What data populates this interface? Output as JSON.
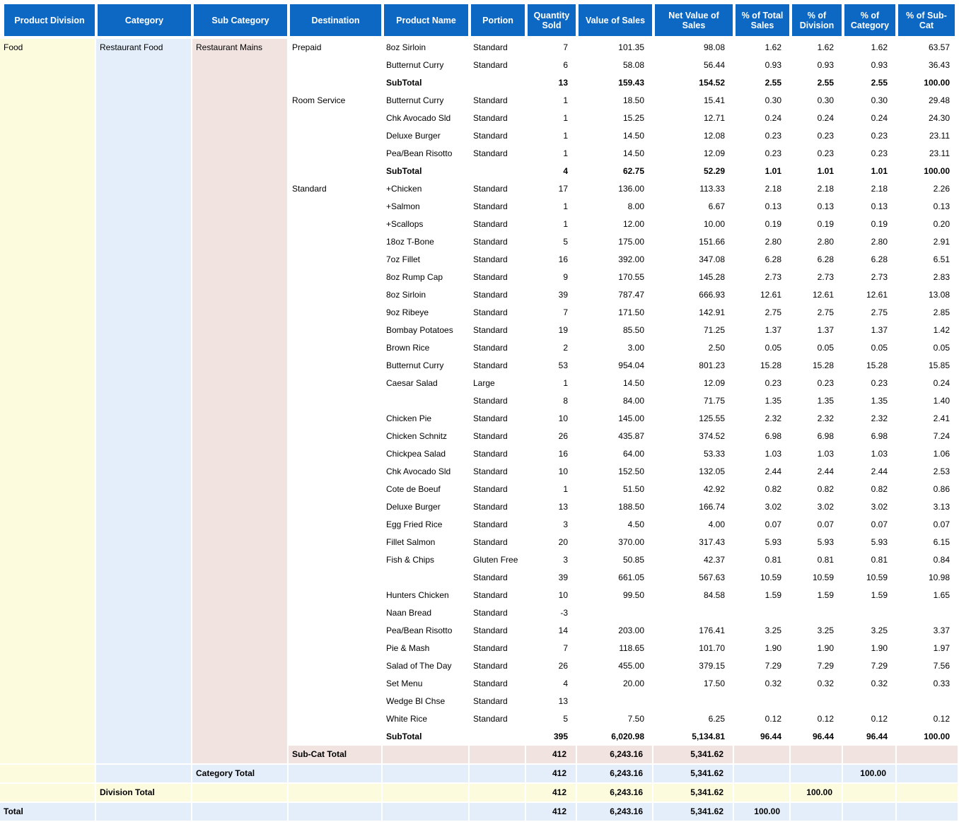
{
  "colors": {
    "header_bg": "#0D68C3",
    "header_text": "#FFFFFF",
    "band_yellow": "#FDFBDE",
    "band_blue": "#E4EEFA",
    "band_pink": "#F0E3E0",
    "text": "#000000"
  },
  "table": {
    "columns": [
      {
        "key": "product_division",
        "label": "Product Division",
        "align": "left"
      },
      {
        "key": "category",
        "label": "Category",
        "align": "left"
      },
      {
        "key": "sub_category",
        "label": "Sub Category",
        "align": "left"
      },
      {
        "key": "destination",
        "label": "Destination",
        "align": "left"
      },
      {
        "key": "product_name",
        "label": "Product Name",
        "align": "left"
      },
      {
        "key": "portion",
        "label": "Portion",
        "align": "left"
      },
      {
        "key": "quantity_sold",
        "label": "Quantity Sold",
        "align": "right"
      },
      {
        "key": "value_of_sales",
        "label": "Value of Sales",
        "align": "right"
      },
      {
        "key": "net_value_of_sales",
        "label": "Net Value of Sales",
        "align": "right"
      },
      {
        "key": "pct_of_total_sales",
        "label": "% of Total Sales",
        "align": "right"
      },
      {
        "key": "pct_of_division",
        "label": "% of Division",
        "align": "right"
      },
      {
        "key": "pct_of_category",
        "label": "% of Category",
        "align": "right"
      },
      {
        "key": "pct_of_sub_cat",
        "label": "% of Sub-Cat",
        "align": "right"
      }
    ],
    "rows": [
      {
        "type": "data",
        "cells": [
          "Food",
          "Restaurant Food",
          "Restaurant Mains",
          "Prepaid",
          "8oz Sirloin",
          "Standard",
          "7",
          "101.35",
          "98.08",
          "1.62",
          "1.62",
          "1.62",
          "63.57"
        ]
      },
      {
        "type": "data",
        "cells": [
          "",
          "",
          "",
          "",
          "Butternut Curry",
          "Standard",
          "6",
          "58.08",
          "56.44",
          "0.93",
          "0.93",
          "0.93",
          "36.43"
        ]
      },
      {
        "type": "subtotal",
        "cells": [
          "",
          "",
          "",
          "",
          "SubTotal",
          "",
          "13",
          "159.43",
          "154.52",
          "2.55",
          "2.55",
          "2.55",
          "100.00"
        ]
      },
      {
        "type": "data",
        "cells": [
          "",
          "",
          "",
          "Room Service",
          "Butternut Curry",
          "Standard",
          "1",
          "18.50",
          "15.41",
          "0.30",
          "0.30",
          "0.30",
          "29.48"
        ]
      },
      {
        "type": "data",
        "cells": [
          "",
          "",
          "",
          "",
          "Chk Avocado Sld",
          "Standard",
          "1",
          "15.25",
          "12.71",
          "0.24",
          "0.24",
          "0.24",
          "24.30"
        ]
      },
      {
        "type": "data",
        "cells": [
          "",
          "",
          "",
          "",
          "Deluxe Burger",
          "Standard",
          "1",
          "14.50",
          "12.08",
          "0.23",
          "0.23",
          "0.23",
          "23.11"
        ]
      },
      {
        "type": "data",
        "cells": [
          "",
          "",
          "",
          "",
          "Pea/Bean Risotto",
          "Standard",
          "1",
          "14.50",
          "12.09",
          "0.23",
          "0.23",
          "0.23",
          "23.11"
        ]
      },
      {
        "type": "subtotal",
        "cells": [
          "",
          "",
          "",
          "",
          "SubTotal",
          "",
          "4",
          "62.75",
          "52.29",
          "1.01",
          "1.01",
          "1.01",
          "100.00"
        ]
      },
      {
        "type": "data",
        "cells": [
          "",
          "",
          "",
          "Standard",
          "+Chicken",
          "Standard",
          "17",
          "136.00",
          "113.33",
          "2.18",
          "2.18",
          "2.18",
          "2.26"
        ]
      },
      {
        "type": "data",
        "cells": [
          "",
          "",
          "",
          "",
          "+Salmon",
          "Standard",
          "1",
          "8.00",
          "6.67",
          "0.13",
          "0.13",
          "0.13",
          "0.13"
        ]
      },
      {
        "type": "data",
        "cells": [
          "",
          "",
          "",
          "",
          "+Scallops",
          "Standard",
          "1",
          "12.00",
          "10.00",
          "0.19",
          "0.19",
          "0.19",
          "0.20"
        ]
      },
      {
        "type": "data",
        "cells": [
          "",
          "",
          "",
          "",
          "18oz T-Bone",
          "Standard",
          "5",
          "175.00",
          "151.66",
          "2.80",
          "2.80",
          "2.80",
          "2.91"
        ]
      },
      {
        "type": "data",
        "cells": [
          "",
          "",
          "",
          "",
          "7oz Fillet",
          "Standard",
          "16",
          "392.00",
          "347.08",
          "6.28",
          "6.28",
          "6.28",
          "6.51"
        ]
      },
      {
        "type": "data",
        "cells": [
          "",
          "",
          "",
          "",
          "8oz Rump Cap",
          "Standard",
          "9",
          "170.55",
          "145.28",
          "2.73",
          "2.73",
          "2.73",
          "2.83"
        ]
      },
      {
        "type": "data",
        "cells": [
          "",
          "",
          "",
          "",
          "8oz Sirloin",
          "Standard",
          "39",
          "787.47",
          "666.93",
          "12.61",
          "12.61",
          "12.61",
          "13.08"
        ]
      },
      {
        "type": "data",
        "cells": [
          "",
          "",
          "",
          "",
          "9oz Ribeye",
          "Standard",
          "7",
          "171.50",
          "142.91",
          "2.75",
          "2.75",
          "2.75",
          "2.85"
        ]
      },
      {
        "type": "data",
        "cells": [
          "",
          "",
          "",
          "",
          "Bombay Potatoes",
          "Standard",
          "19",
          "85.50",
          "71.25",
          "1.37",
          "1.37",
          "1.37",
          "1.42"
        ]
      },
      {
        "type": "data",
        "cells": [
          "",
          "",
          "",
          "",
          "Brown Rice",
          "Standard",
          "2",
          "3.00",
          "2.50",
          "0.05",
          "0.05",
          "0.05",
          "0.05"
        ]
      },
      {
        "type": "data",
        "cells": [
          "",
          "",
          "",
          "",
          "Butternut Curry",
          "Standard",
          "53",
          "954.04",
          "801.23",
          "15.28",
          "15.28",
          "15.28",
          "15.85"
        ]
      },
      {
        "type": "data",
        "cells": [
          "",
          "",
          "",
          "",
          "Caesar Salad",
          "Large",
          "1",
          "14.50",
          "12.09",
          "0.23",
          "0.23",
          "0.23",
          "0.24"
        ]
      },
      {
        "type": "data",
        "cells": [
          "",
          "",
          "",
          "",
          "",
          "Standard",
          "8",
          "84.00",
          "71.75",
          "1.35",
          "1.35",
          "1.35",
          "1.40"
        ]
      },
      {
        "type": "data",
        "cells": [
          "",
          "",
          "",
          "",
          "Chicken Pie",
          "Standard",
          "10",
          "145.00",
          "125.55",
          "2.32",
          "2.32",
          "2.32",
          "2.41"
        ]
      },
      {
        "type": "data",
        "cells": [
          "",
          "",
          "",
          "",
          "Chicken Schnitz",
          "Standard",
          "26",
          "435.87",
          "374.52",
          "6.98",
          "6.98",
          "6.98",
          "7.24"
        ]
      },
      {
        "type": "data",
        "cells": [
          "",
          "",
          "",
          "",
          "Chickpea Salad",
          "Standard",
          "16",
          "64.00",
          "53.33",
          "1.03",
          "1.03",
          "1.03",
          "1.06"
        ]
      },
      {
        "type": "data",
        "cells": [
          "",
          "",
          "",
          "",
          "Chk Avocado Sld",
          "Standard",
          "10",
          "152.50",
          "132.05",
          "2.44",
          "2.44",
          "2.44",
          "2.53"
        ]
      },
      {
        "type": "data",
        "cells": [
          "",
          "",
          "",
          "",
          "Cote de Boeuf",
          "Standard",
          "1",
          "51.50",
          "42.92",
          "0.82",
          "0.82",
          "0.82",
          "0.86"
        ]
      },
      {
        "type": "data",
        "cells": [
          "",
          "",
          "",
          "",
          "Deluxe Burger",
          "Standard",
          "13",
          "188.50",
          "166.74",
          "3.02",
          "3.02",
          "3.02",
          "3.13"
        ]
      },
      {
        "type": "data",
        "cells": [
          "",
          "",
          "",
          "",
          "Egg Fried Rice",
          "Standard",
          "3",
          "4.50",
          "4.00",
          "0.07",
          "0.07",
          "0.07",
          "0.07"
        ]
      },
      {
        "type": "data",
        "cells": [
          "",
          "",
          "",
          "",
          "Fillet Salmon",
          "Standard",
          "20",
          "370.00",
          "317.43",
          "5.93",
          "5.93",
          "5.93",
          "6.15"
        ]
      },
      {
        "type": "data",
        "cells": [
          "",
          "",
          "",
          "",
          "Fish & Chips",
          "Gluten Free",
          "3",
          "50.85",
          "42.37",
          "0.81",
          "0.81",
          "0.81",
          "0.84"
        ]
      },
      {
        "type": "data",
        "cells": [
          "",
          "",
          "",
          "",
          "",
          "Standard",
          "39",
          "661.05",
          "567.63",
          "10.59",
          "10.59",
          "10.59",
          "10.98"
        ]
      },
      {
        "type": "data",
        "cells": [
          "",
          "",
          "",
          "",
          "Hunters Chicken",
          "Standard",
          "10",
          "99.50",
          "84.58",
          "1.59",
          "1.59",
          "1.59",
          "1.65"
        ]
      },
      {
        "type": "data",
        "cells": [
          "",
          "",
          "",
          "",
          "Naan Bread",
          "Standard",
          "-3",
          "",
          "",
          "",
          "",
          "",
          ""
        ]
      },
      {
        "type": "data",
        "cells": [
          "",
          "",
          "",
          "",
          "Pea/Bean Risotto",
          "Standard",
          "14",
          "203.00",
          "176.41",
          "3.25",
          "3.25",
          "3.25",
          "3.37"
        ]
      },
      {
        "type": "data",
        "cells": [
          "",
          "",
          "",
          "",
          "Pie & Mash",
          "Standard",
          "7",
          "118.65",
          "101.70",
          "1.90",
          "1.90",
          "1.90",
          "1.97"
        ]
      },
      {
        "type": "data",
        "cells": [
          "",
          "",
          "",
          "",
          "Salad of The Day",
          "Standard",
          "26",
          "455.00",
          "379.15",
          "7.29",
          "7.29",
          "7.29",
          "7.56"
        ]
      },
      {
        "type": "data",
        "cells": [
          "",
          "",
          "",
          "",
          "Set Menu",
          "Standard",
          "4",
          "20.00",
          "17.50",
          "0.32",
          "0.32",
          "0.32",
          "0.33"
        ]
      },
      {
        "type": "data",
        "cells": [
          "",
          "",
          "",
          "",
          "Wedge Bl Chse",
          "Standard",
          "13",
          "",
          "",
          "",
          "",
          "",
          ""
        ]
      },
      {
        "type": "data",
        "cells": [
          "",
          "",
          "",
          "",
          "White Rice",
          "Standard",
          "5",
          "7.50",
          "6.25",
          "0.12",
          "0.12",
          "0.12",
          "0.12"
        ]
      },
      {
        "type": "subtotal",
        "cells": [
          "",
          "",
          "",
          "",
          "SubTotal",
          "",
          "395",
          "6,020.98",
          "5,134.81",
          "96.44",
          "96.44",
          "96.44",
          "100.00"
        ]
      },
      {
        "type": "subcat-total",
        "cells": [
          "",
          "",
          "",
          "Sub-Cat Total",
          "",
          "",
          "412",
          "6,243.16",
          "5,341.62",
          "",
          "",
          "",
          ""
        ]
      },
      {
        "type": "category-total",
        "cells": [
          "",
          "",
          "Category Total",
          "",
          "",
          "",
          "412",
          "6,243.16",
          "5,341.62",
          "",
          "",
          "100.00",
          ""
        ]
      },
      {
        "type": "division-total",
        "cells": [
          "",
          "Division Total",
          "",
          "",
          "",
          "",
          "412",
          "6,243.16",
          "5,341.62",
          "",
          "100.00",
          "",
          ""
        ]
      },
      {
        "type": "grand-total",
        "cells": [
          "Total",
          "",
          "",
          "",
          "",
          "",
          "412",
          "6,243.16",
          "5,341.62",
          "100.00",
          "",
          "",
          ""
        ]
      }
    ]
  }
}
